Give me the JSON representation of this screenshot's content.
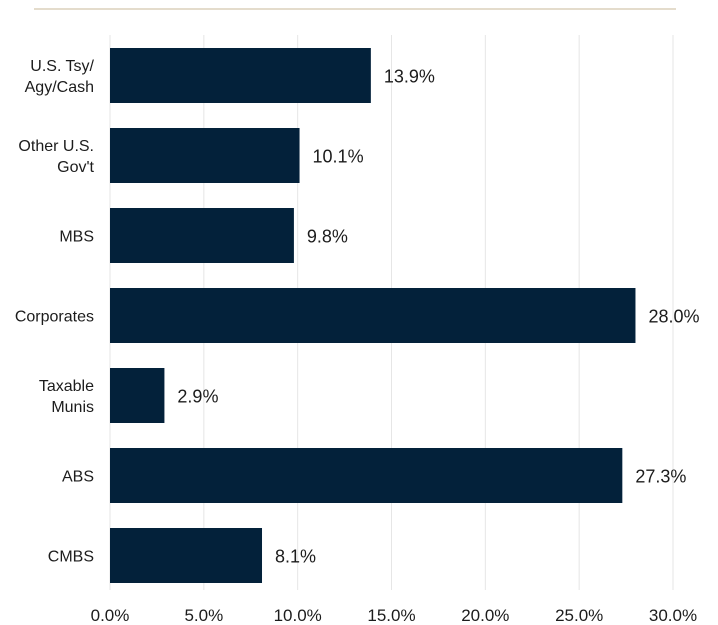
{
  "chart_data": {
    "type": "bar",
    "orientation": "horizontal",
    "categories": [
      [
        "U.S. Tsy/",
        "Agy/Cash"
      ],
      [
        "Other U.S.",
        "Gov't"
      ],
      [
        "MBS"
      ],
      [
        "Corporates"
      ],
      [
        "Taxable",
        "Munis"
      ],
      [
        "ABS"
      ],
      [
        "CMBS"
      ]
    ],
    "values": [
      13.9,
      10.1,
      9.8,
      28.0,
      2.9,
      27.3,
      8.1
    ],
    "value_labels": [
      "13.9%",
      "10.1%",
      "9.8%",
      "28.0%",
      "2.9%",
      "27.3%",
      "8.1%"
    ],
    "x_ticks": [
      0,
      5,
      10,
      15,
      20,
      25,
      30
    ],
    "x_tick_labels": [
      "0.0%",
      "5.0%",
      "10.0%",
      "15.0%",
      "20.0%",
      "25.0%",
      "30.0%"
    ],
    "xlim": [
      0,
      30
    ],
    "grid": "vertical",
    "bar_color": "#03213a",
    "grid_color": "#e6e6e6",
    "top_rule_color": "#c9b89a"
  }
}
